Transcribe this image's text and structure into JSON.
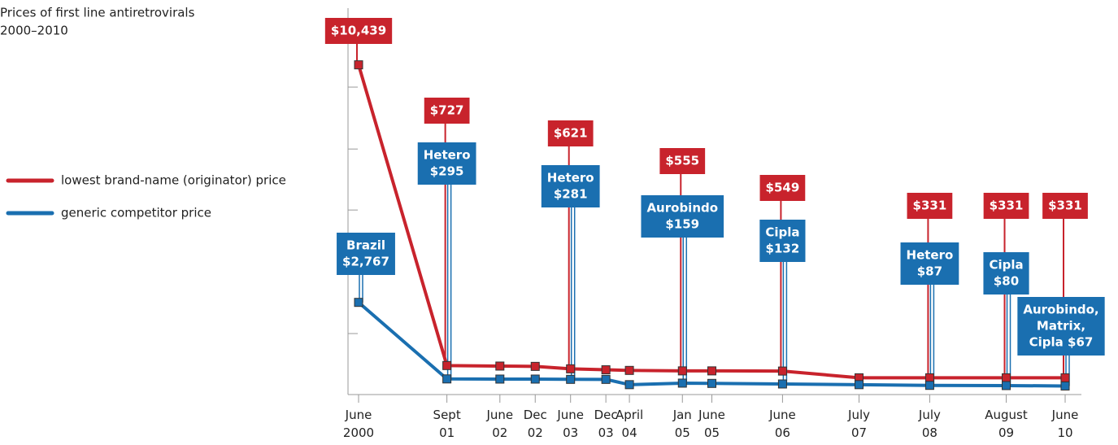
{
  "chart_data": {
    "type": "line",
    "title": "Prices of first line antiretrovirals",
    "subtitle": "2000–2010",
    "x": [
      2000.417,
      2001.667,
      2002.417,
      2002.917,
      2003.417,
      2003.917,
      2004.25,
      2005.0,
      2005.417,
      2006.417,
      2007.5,
      2008.5,
      2009.583,
      2010.417
    ],
    "series": [
      {
        "name": "lowest brand-name (originator) price",
        "color": "#c8232c",
        "values": [
          10439,
          727,
          710,
          700,
          621,
          590,
          570,
          555,
          555,
          549,
          331,
          331,
          331,
          331
        ],
        "value_labels": [
          "$10,439",
          "$727",
          null,
          null,
          "$621",
          null,
          null,
          "$555",
          null,
          "$549",
          null,
          "$331",
          "$331",
          "$331"
        ]
      },
      {
        "name": "generic competitor price",
        "color": "#1a6fb0",
        "values": [
          2767,
          295,
          290,
          290,
          281,
          280,
          110,
          159,
          150,
          132,
          110,
          87,
          80,
          67
        ],
        "value_labels": [
          [
            "Brazil",
            "$2,767"
          ],
          [
            "Hetero",
            "$295"
          ],
          null,
          null,
          [
            "Hetero",
            "$281"
          ],
          null,
          null,
          [
            "Aurobindo",
            "$159"
          ],
          null,
          [
            "Cipla",
            "$132"
          ],
          null,
          [
            "Hetero",
            "$87"
          ],
          [
            "Cipla",
            "$80"
          ],
          [
            "Aurobindo,",
            "Matrix,",
            "Cipla $67"
          ]
        ]
      }
    ],
    "xlim": [
      2000.27,
      2010.55
    ],
    "xticks": [
      {
        "value": 2000.417,
        "label": "June 2000"
      },
      {
        "value": 2001.667,
        "label": "Sept 01"
      },
      {
        "value": 2002.417,
        "label": "June 02"
      },
      {
        "value": 2002.917,
        "label": "Dec 02"
      },
      {
        "value": 2003.417,
        "label": "June 03"
      },
      {
        "value": 2003.917,
        "label": "Dec 03"
      },
      {
        "value": 2004.25,
        "label": "April 04"
      },
      {
        "value": 2005.0,
        "label": "Jan 05"
      },
      {
        "value": 2005.417,
        "label": "June 05"
      },
      {
        "value": 2006.417,
        "label": "June 06"
      },
      {
        "value": 2007.5,
        "label": "July 07"
      },
      {
        "value": 2008.5,
        "label": "July 08"
      },
      {
        "value": 2009.583,
        "label": "August 09"
      },
      {
        "value": 2010.417,
        "label": "June 10"
      }
    ],
    "ylim": [
      -210,
      12270
    ],
    "yticks": [
      1760,
      3760,
      5750,
      7720,
      9720
    ],
    "legend": "left"
  }
}
